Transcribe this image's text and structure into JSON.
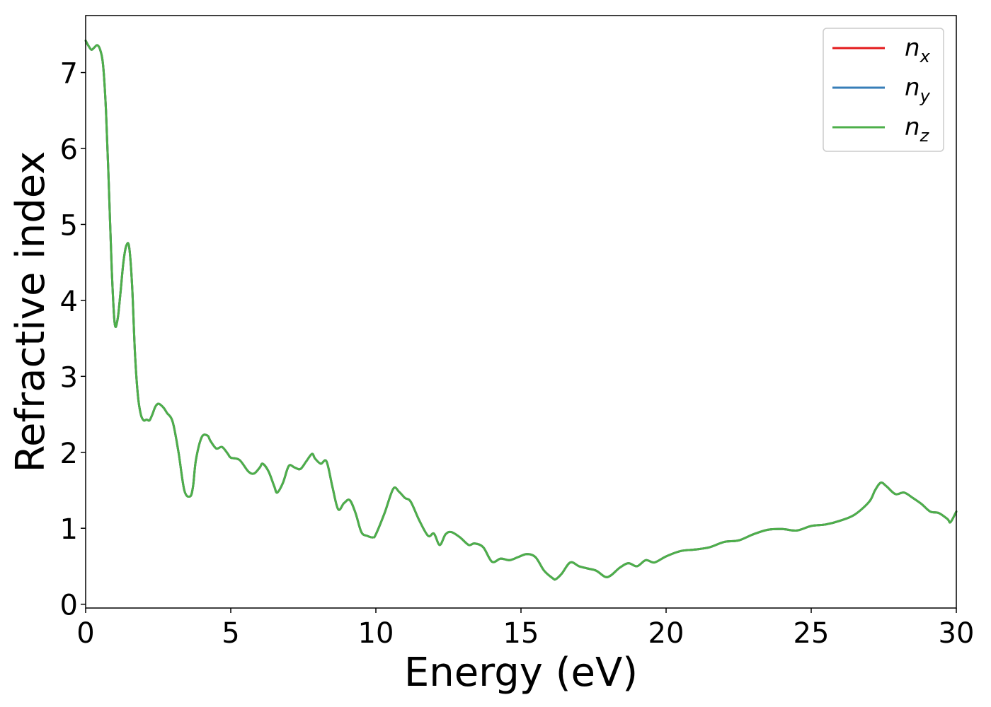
{
  "chart_data": {
    "type": "line",
    "xlabel": "Energy (eV)",
    "ylabel": "Refractive index",
    "xlim": [
      0,
      30
    ],
    "ylim": [
      -0.05,
      7.75
    ],
    "xticks": [
      0,
      5,
      10,
      15,
      20,
      25,
      30
    ],
    "xtick_labels": [
      "0",
      "5",
      "10",
      "15",
      "20",
      "25",
      "30"
    ],
    "yticks": [
      0,
      1,
      2,
      3,
      4,
      5,
      6,
      7
    ],
    "ytick_labels": [
      "0",
      "1",
      "2",
      "3",
      "4",
      "5",
      "6",
      "7"
    ],
    "grid": false,
    "legend_position": "top-right",
    "x": [
      0,
      0.1,
      0.2,
      0.3,
      0.4,
      0.5,
      0.6,
      0.7,
      0.8,
      0.9,
      1.0,
      1.1,
      1.2,
      1.3,
      1.4,
      1.5,
      1.6,
      1.7,
      1.8,
      1.9,
      2.0,
      2.1,
      2.2,
      2.3,
      2.4,
      2.5,
      2.6,
      2.7,
      2.8,
      3.0,
      3.2,
      3.4,
      3.6,
      3.7,
      3.8,
      4.0,
      4.2,
      4.3,
      4.5,
      4.7,
      4.9,
      5.0,
      5.3,
      5.6,
      5.8,
      6.0,
      6.1,
      6.3,
      6.5,
      6.6,
      6.8,
      7.0,
      7.2,
      7.4,
      7.6,
      7.8,
      7.9,
      8.1,
      8.3,
      8.5,
      8.7,
      8.9,
      9.1,
      9.3,
      9.5,
      9.7,
      9.9,
      10.0,
      10.3,
      10.6,
      10.8,
      11.0,
      11.2,
      11.5,
      11.8,
      12.0,
      12.2,
      12.4,
      12.6,
      12.9,
      13.2,
      13.4,
      13.7,
      14.0,
      14.3,
      14.6,
      14.9,
      15.2,
      15.5,
      15.8,
      16.1,
      16.2,
      16.4,
      16.7,
      17.0,
      17.3,
      17.6,
      17.9,
      18.1,
      18.4,
      18.7,
      19.0,
      19.3,
      19.6,
      20.0,
      20.5,
      21.0,
      21.5,
      22.0,
      22.5,
      23.0,
      23.5,
      24.0,
      24.5,
      25.0,
      25.5,
      26.0,
      26.5,
      27.0,
      27.2,
      27.4,
      27.6,
      27.9,
      28.2,
      28.5,
      28.8,
      29.1,
      29.4,
      29.7,
      29.8,
      30.0
    ],
    "series": [
      {
        "name": "n_x",
        "color": "#e41a1c",
        "values": [
          7.42,
          7.35,
          7.3,
          7.33,
          7.36,
          7.3,
          7.1,
          6.5,
          5.5,
          4.4,
          3.7,
          3.75,
          4.1,
          4.5,
          4.72,
          4.7,
          4.2,
          3.3,
          2.75,
          2.5,
          2.42,
          2.43,
          2.42,
          2.5,
          2.6,
          2.64,
          2.62,
          2.58,
          2.52,
          2.4,
          2.0,
          1.5,
          1.42,
          1.55,
          1.9,
          2.2,
          2.22,
          2.15,
          2.05,
          2.07,
          1.98,
          1.93,
          1.9,
          1.75,
          1.72,
          1.8,
          1.85,
          1.75,
          1.55,
          1.47,
          1.6,
          1.82,
          1.8,
          1.78,
          1.88,
          1.98,
          1.92,
          1.85,
          1.88,
          1.55,
          1.25,
          1.33,
          1.37,
          1.2,
          0.95,
          0.9,
          0.88,
          0.92,
          1.2,
          1.52,
          1.48,
          1.4,
          1.35,
          1.1,
          0.9,
          0.93,
          0.78,
          0.92,
          0.95,
          0.88,
          0.78,
          0.8,
          0.75,
          0.56,
          0.6,
          0.58,
          0.62,
          0.66,
          0.62,
          0.44,
          0.34,
          0.33,
          0.4,
          0.55,
          0.5,
          0.47,
          0.44,
          0.36,
          0.38,
          0.48,
          0.54,
          0.5,
          0.58,
          0.55,
          0.63,
          0.7,
          0.72,
          0.75,
          0.82,
          0.84,
          0.92,
          0.98,
          0.99,
          0.97,
          1.03,
          1.05,
          1.1,
          1.18,
          1.35,
          1.5,
          1.6,
          1.55,
          1.45,
          1.47,
          1.4,
          1.32,
          1.22,
          1.2,
          1.12,
          1.08,
          1.22
        ]
      },
      {
        "name": "n_y",
        "color": "#377eb8",
        "values": [
          7.42,
          7.35,
          7.3,
          7.33,
          7.36,
          7.3,
          7.1,
          6.5,
          5.5,
          4.4,
          3.7,
          3.75,
          4.1,
          4.5,
          4.72,
          4.7,
          4.2,
          3.3,
          2.75,
          2.5,
          2.42,
          2.43,
          2.42,
          2.5,
          2.6,
          2.64,
          2.62,
          2.58,
          2.52,
          2.4,
          2.0,
          1.5,
          1.42,
          1.55,
          1.9,
          2.2,
          2.22,
          2.15,
          2.05,
          2.07,
          1.98,
          1.93,
          1.9,
          1.75,
          1.72,
          1.8,
          1.85,
          1.75,
          1.55,
          1.47,
          1.6,
          1.82,
          1.8,
          1.78,
          1.88,
          1.98,
          1.92,
          1.85,
          1.88,
          1.55,
          1.25,
          1.33,
          1.37,
          1.2,
          0.95,
          0.9,
          0.88,
          0.92,
          1.2,
          1.52,
          1.48,
          1.4,
          1.35,
          1.1,
          0.9,
          0.93,
          0.78,
          0.92,
          0.95,
          0.88,
          0.78,
          0.8,
          0.75,
          0.56,
          0.6,
          0.58,
          0.62,
          0.66,
          0.62,
          0.44,
          0.34,
          0.33,
          0.4,
          0.55,
          0.5,
          0.47,
          0.44,
          0.36,
          0.38,
          0.48,
          0.54,
          0.5,
          0.58,
          0.55,
          0.63,
          0.7,
          0.72,
          0.75,
          0.82,
          0.84,
          0.92,
          0.98,
          0.99,
          0.97,
          1.03,
          1.05,
          1.1,
          1.18,
          1.35,
          1.5,
          1.6,
          1.55,
          1.45,
          1.47,
          1.4,
          1.32,
          1.22,
          1.2,
          1.12,
          1.08,
          1.22
        ]
      },
      {
        "name": "n_z",
        "color": "#4daf4a",
        "values": [
          7.42,
          7.35,
          7.3,
          7.33,
          7.36,
          7.3,
          7.1,
          6.5,
          5.5,
          4.4,
          3.7,
          3.75,
          4.1,
          4.5,
          4.72,
          4.7,
          4.2,
          3.3,
          2.75,
          2.5,
          2.42,
          2.43,
          2.42,
          2.5,
          2.6,
          2.64,
          2.62,
          2.58,
          2.52,
          2.4,
          2.0,
          1.5,
          1.42,
          1.55,
          1.9,
          2.2,
          2.22,
          2.15,
          2.05,
          2.07,
          1.98,
          1.93,
          1.9,
          1.75,
          1.72,
          1.8,
          1.85,
          1.75,
          1.55,
          1.47,
          1.6,
          1.82,
          1.8,
          1.78,
          1.88,
          1.98,
          1.92,
          1.85,
          1.88,
          1.55,
          1.25,
          1.33,
          1.37,
          1.2,
          0.95,
          0.9,
          0.88,
          0.92,
          1.2,
          1.52,
          1.48,
          1.4,
          1.35,
          1.1,
          0.9,
          0.93,
          0.78,
          0.92,
          0.95,
          0.88,
          0.78,
          0.8,
          0.75,
          0.56,
          0.6,
          0.58,
          0.62,
          0.66,
          0.62,
          0.44,
          0.34,
          0.33,
          0.4,
          0.55,
          0.5,
          0.47,
          0.44,
          0.36,
          0.38,
          0.48,
          0.54,
          0.5,
          0.58,
          0.55,
          0.63,
          0.7,
          0.72,
          0.75,
          0.82,
          0.84,
          0.92,
          0.98,
          0.99,
          0.97,
          1.03,
          1.05,
          1.1,
          1.18,
          1.35,
          1.5,
          1.6,
          1.55,
          1.45,
          1.47,
          1.4,
          1.32,
          1.22,
          1.2,
          1.12,
          1.08,
          1.22
        ]
      }
    ],
    "legend": [
      {
        "base": "n",
        "sub": "x",
        "color": "#e41a1c"
      },
      {
        "base": "n",
        "sub": "y",
        "color": "#377eb8"
      },
      {
        "base": "n",
        "sub": "z",
        "color": "#4daf4a"
      }
    ]
  }
}
